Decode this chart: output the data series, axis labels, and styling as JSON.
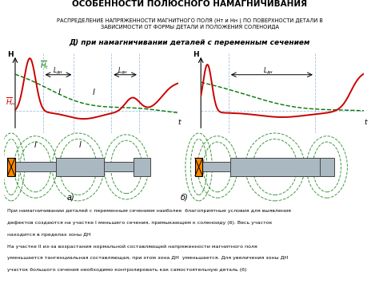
{
  "title": "ОСОБЕННОСТИ ПОЛЮСНОГО НАМАГНИЧИВАНИЯ",
  "subtitle": "РАСПРЕДЕЛЕНИЕ НАПРЯЖЕННОСТИ МАГНИТНОГО ПОЛЯ (Нт и Нн ) ПО ПОВЕРХНОСТИ ДЕТАЛИ В\nЗАВИСИМОСТИ ОТ ФОРМЫ ДЕТАЛИ И ПОЛОЖЕНИЯ СОЛЕНОИДА",
  "section_title": "Д) при намагничивании деталей с переменным сечением",
  "caption_line1": "При намагничивании деталей с переменным сечением наиболее  благоприятные условия для выявления",
  "caption_line2": "дефектов создаются на участке I меньшего сечения, примыкающем к соленоиду (б). Весь участок",
  "caption_line3": "находится в пределах зоны ДН",
  "caption_line4": "На участке II из-за возрастания нормальной составляющей напряженности магнитного поля",
  "caption_line5": "уменьшается тангенциальная составляющая, при этом зона ДН  уменьшается. Для увеличения зоны ДН",
  "caption_line6": "участок большого сечения необходимо контролировать как самостоятельную деталь (б)",
  "bg_color": "#ffffff",
  "title_color": "#000000",
  "red_color": "#cc0000",
  "green_dashed_color": "#007700",
  "blue_line_color": "#6699cc",
  "orange_color": "#ff8800",
  "shaft_color": "#aab8c2",
  "shaft_edge": "#444444"
}
